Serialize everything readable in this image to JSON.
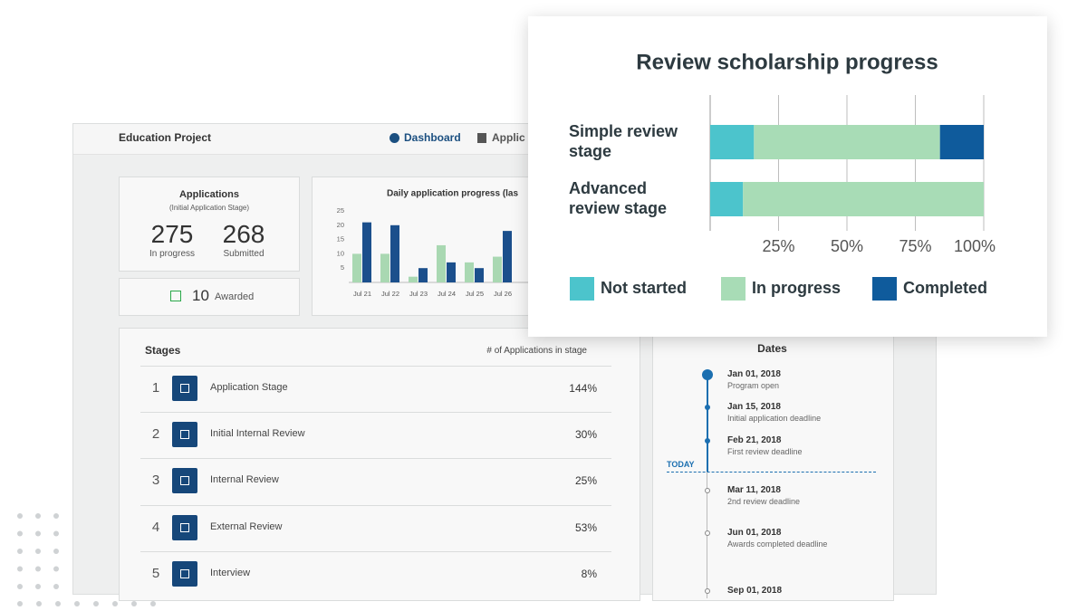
{
  "header": {
    "title": "Education Project",
    "nav": [
      "Dashboard",
      "Applic"
    ]
  },
  "applications_card": {
    "title": "Applications",
    "subtitle": "(Initial Application Stage)",
    "in_progress": {
      "value": 275,
      "label": "In progress"
    },
    "submitted": {
      "value": 268,
      "label": "Submitted"
    },
    "awarded": {
      "value": 10,
      "label": "Awarded"
    }
  },
  "stages_table": {
    "headers": [
      "Stages",
      "# of Applications in stage"
    ],
    "rows": [
      [
        "1",
        "Application Stage",
        "144%"
      ],
      [
        "2",
        "Initial Internal Review",
        "30%"
      ],
      [
        "3",
        "Internal Review",
        "25%"
      ],
      [
        "4",
        "External Review",
        "53%"
      ],
      [
        "5",
        "Interview",
        "8%"
      ]
    ]
  },
  "dates": {
    "title": "Dates",
    "today_label": "TODAY",
    "events": [
      {
        "date": "Jan 01, 2018",
        "label": "Program open"
      },
      {
        "date": "Jan 15, 2018",
        "label": "Initial application deadline"
      },
      {
        "date": "Feb 21, 2018",
        "label": "First review deadline"
      },
      {
        "date": "Mar 11, 2018",
        "label": "2nd review deadline"
      },
      {
        "date": "Jun 01, 2018",
        "label": "Awards completed deadline"
      },
      {
        "date": "Sep 01, 2018"
      }
    ]
  },
  "chart_data": [
    {
      "type": "bar",
      "title": "Daily application progress (las",
      "categories": [
        "Jul 21",
        "Jul 22",
        "Jul 23",
        "Jul 24",
        "Jul 25",
        "Jul 26"
      ],
      "series": [
        {
          "color": "#a9d8b2",
          "values": [
            10,
            10,
            2,
            13,
            7,
            9
          ]
        },
        {
          "color": "#1b4f8c",
          "values": [
            21,
            20,
            5,
            7,
            5,
            18
          ]
        }
      ],
      "ylim": [
        0,
        25
      ],
      "yticks": [
        5,
        10,
        15,
        20,
        25
      ],
      "grid": false
    },
    {
      "type": "barh",
      "stacked": true,
      "title": "Review scholarship progress",
      "categories": [
        "Simple review stage",
        "Advanced review stage"
      ],
      "series": [
        {
          "name": "Not started",
          "color": "#4cc4cc",
          "values": [
            16,
            12
          ]
        },
        {
          "name": "In progress",
          "color": "#a8dcb6",
          "values": [
            68,
            88
          ]
        },
        {
          "name": "Completed",
          "color": "#0f5b9c",
          "values": [
            16,
            0
          ]
        }
      ],
      "xlim": [
        0,
        100
      ],
      "xticks": [
        {
          "value": 25,
          "label": "25%"
        },
        {
          "value": 50,
          "label": "50%"
        },
        {
          "value": 75,
          "label": "75%"
        },
        {
          "value": 100,
          "label": "100%"
        }
      ],
      "grid": true,
      "legend": "bottom"
    }
  ]
}
